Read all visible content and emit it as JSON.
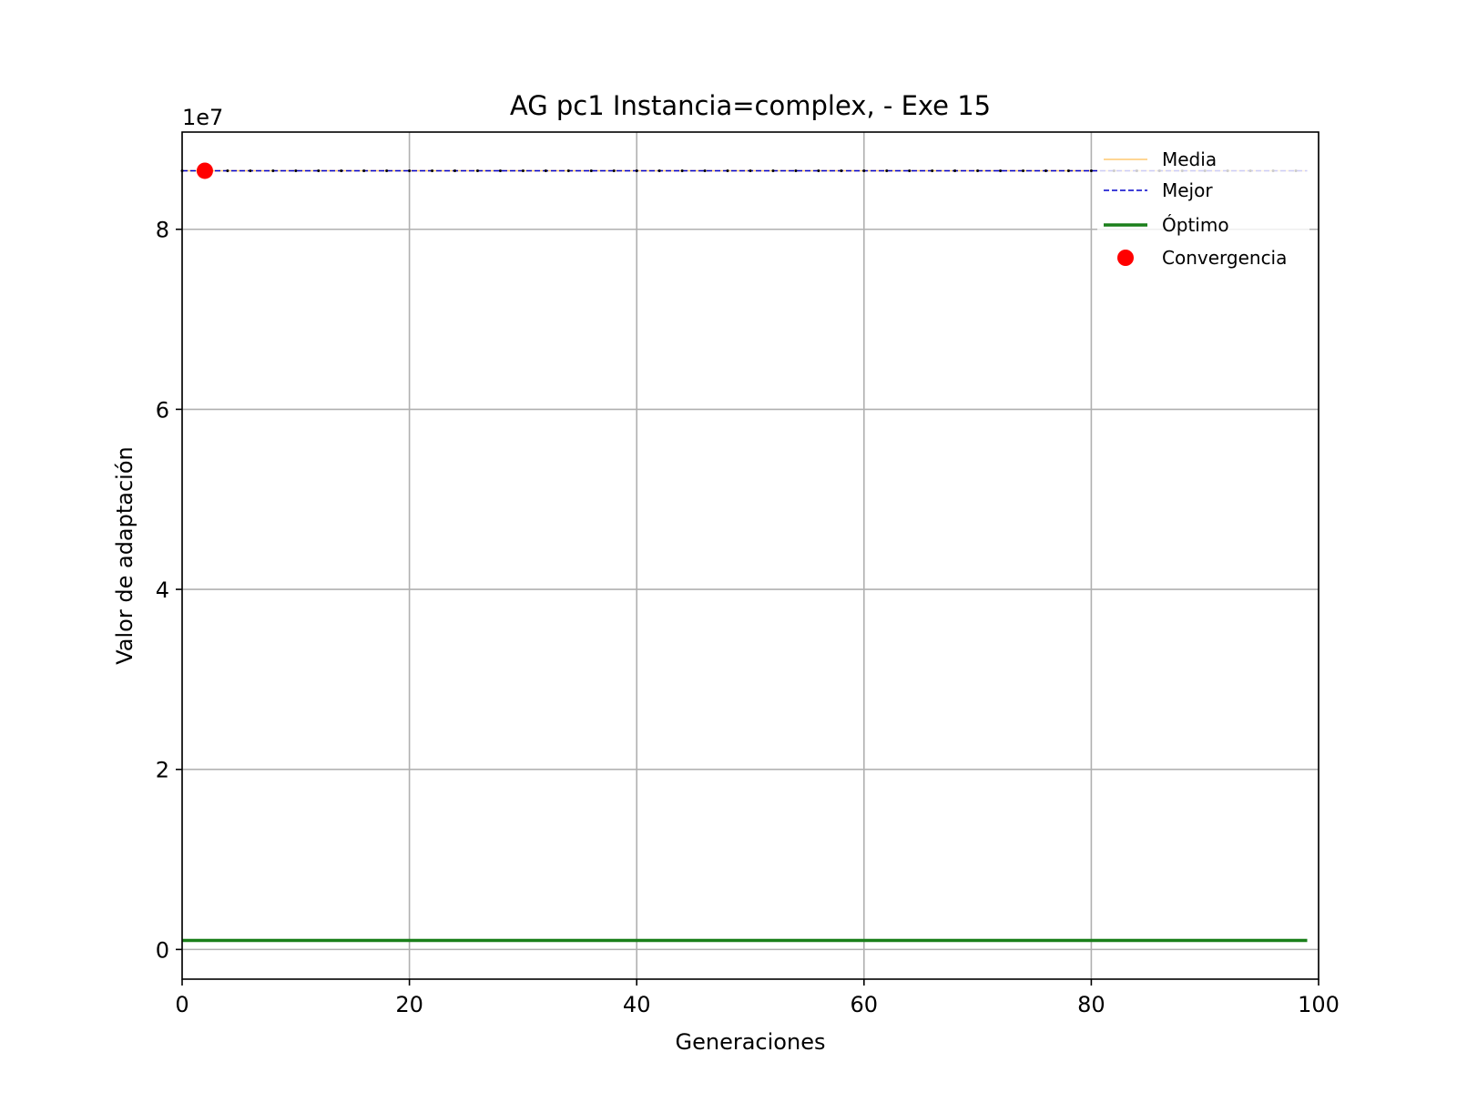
{
  "chart_data": {
    "type": "line",
    "title": "AG pc1 Instancia=complex, - Exe 15",
    "xlabel": "Generaciones",
    "ylabel": "Valor de adaptación",
    "y_offset_label": "1e7",
    "y_multiplier": 10000000,
    "xlim": [
      0,
      100
    ],
    "ylim": [
      -3300000,
      90800000
    ],
    "x_ticks": [
      0,
      20,
      40,
      60,
      80,
      100
    ],
    "x_tick_labels": [
      "0",
      "20",
      "40",
      "60",
      "80",
      "100"
    ],
    "y_ticks": [
      0,
      20000000,
      40000000,
      60000000,
      80000000
    ],
    "y_tick_labels": [
      "0",
      "2",
      "4",
      "6",
      "8"
    ],
    "grid": true,
    "legend_position": "upper right",
    "series": [
      {
        "name": "Media",
        "style": "solid",
        "color": "#ffc870",
        "x": [
          0,
          99
        ],
        "y": [
          86500000,
          86500000
        ]
      },
      {
        "name": "Mejor",
        "style": "dashed",
        "color": "#0000cc",
        "x": [
          0,
          99
        ],
        "y": [
          86500000,
          86500000
        ]
      },
      {
        "name": "Óptimo",
        "style": "solid-thick",
        "color": "#1a7f1a",
        "x": [
          0,
          99
        ],
        "y": [
          1000000,
          1000000
        ]
      },
      {
        "name": "Convergencia",
        "style": "marker",
        "color": "#ff0000",
        "x": [
          2
        ],
        "y": [
          86500000
        ]
      }
    ]
  }
}
